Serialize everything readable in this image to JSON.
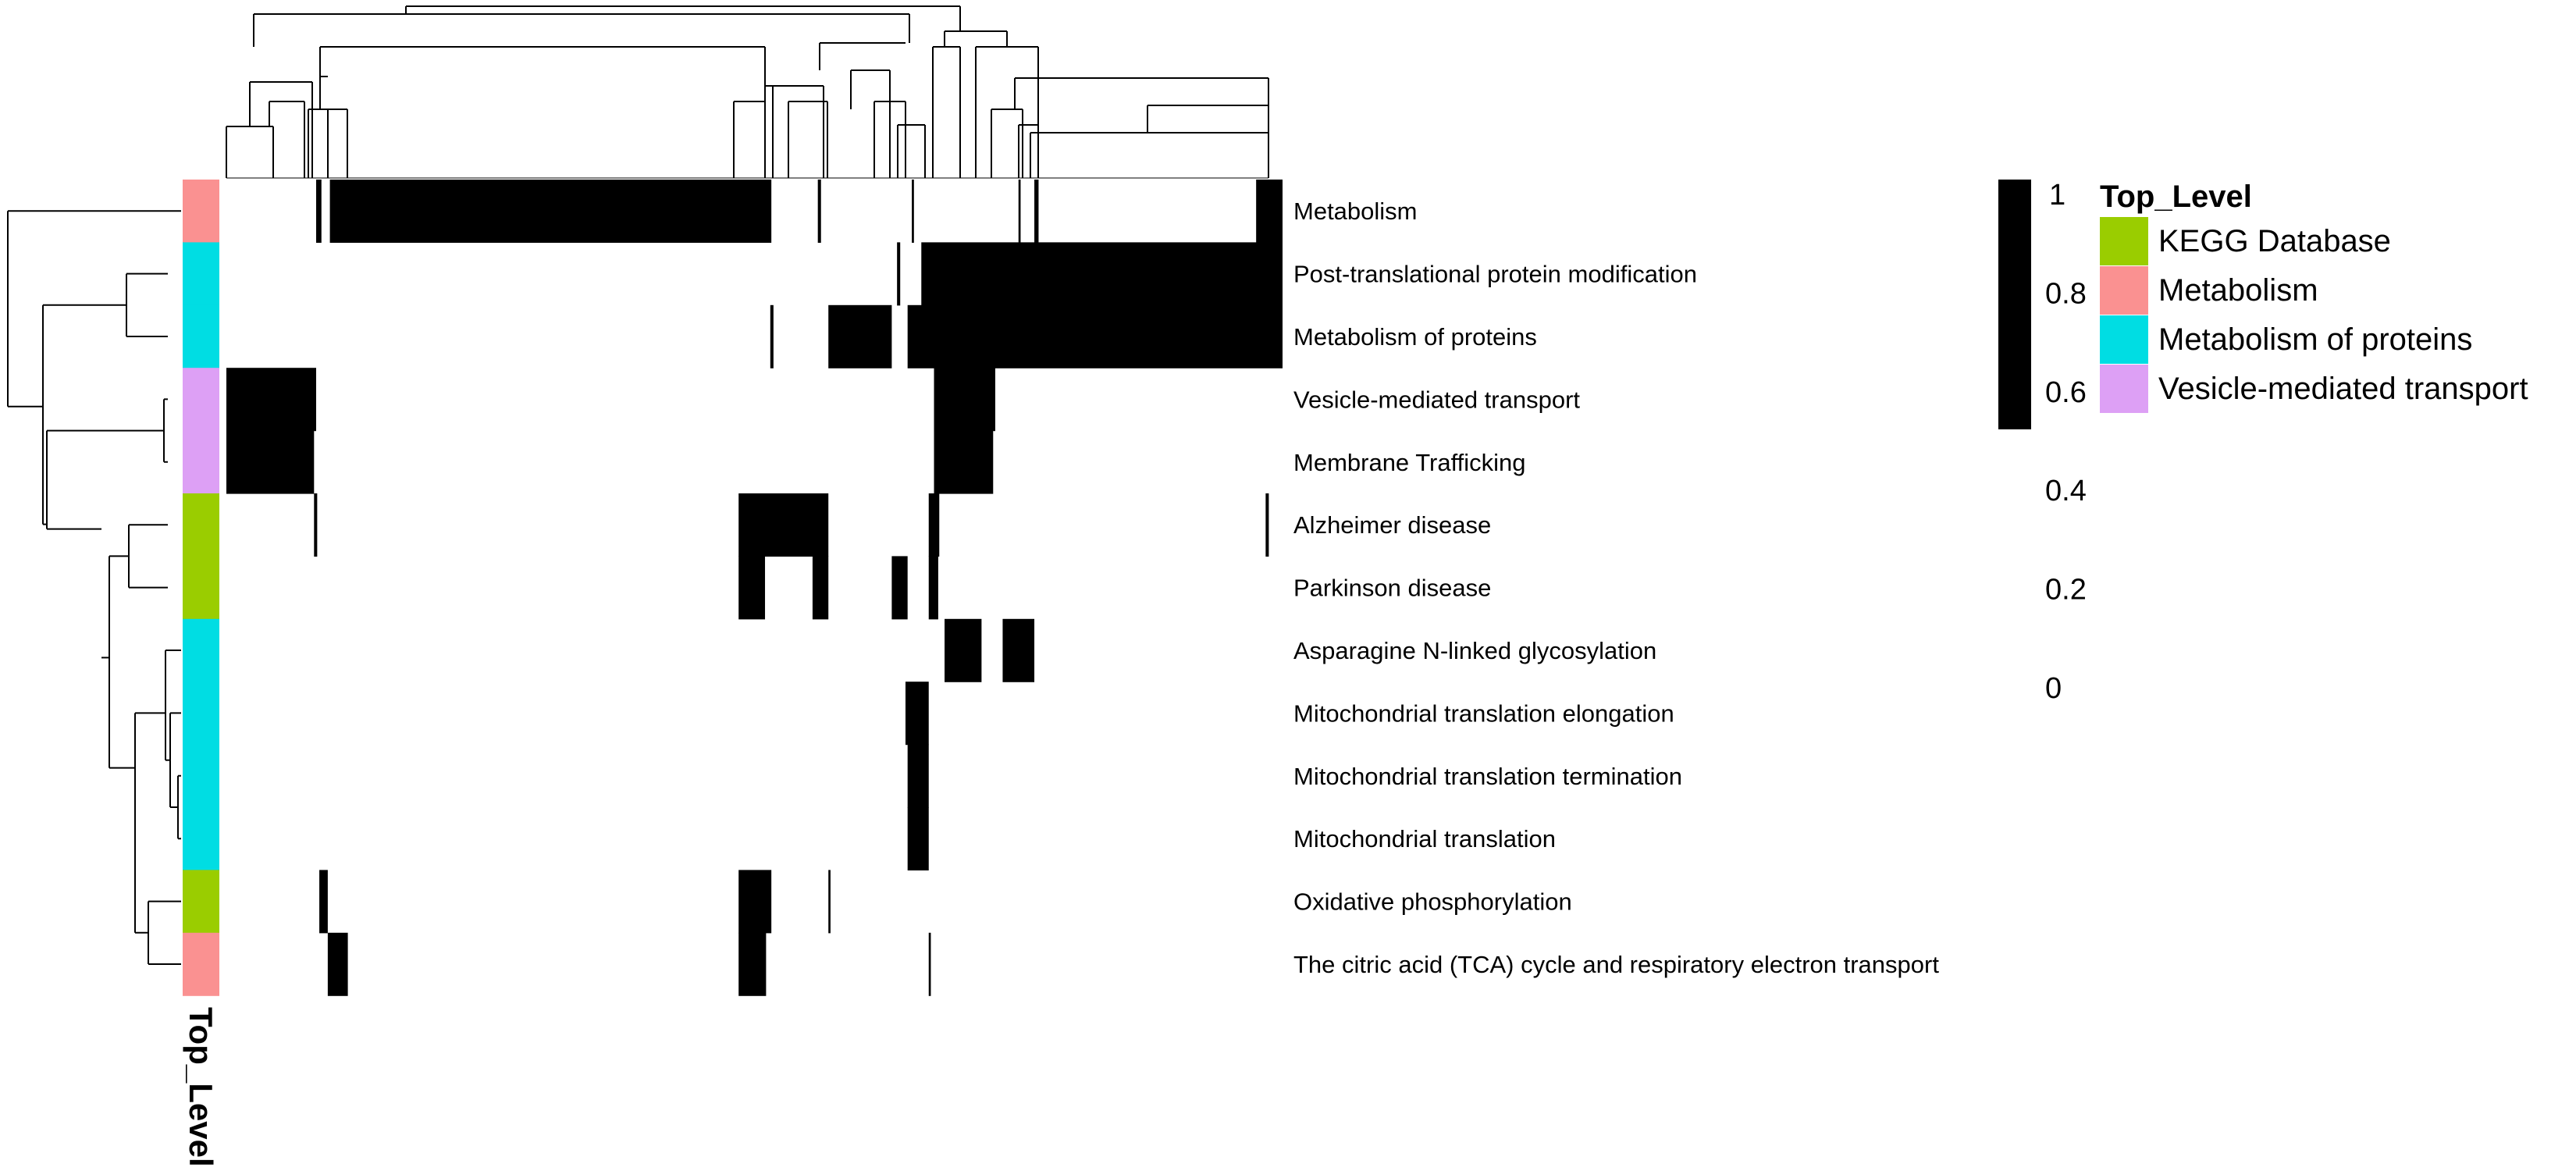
{
  "chart_data": {
    "type": "heatmap",
    "title": "",
    "xlabel": "",
    "ylabel": "",
    "rows": [
      {
        "label": "Metabolism",
        "top_level": "Metabolism"
      },
      {
        "label": "Post-translational protein modification",
        "top_level": "Metabolism of proteins"
      },
      {
        "label": "Metabolism of proteins",
        "top_level": "Metabolism of proteins"
      },
      {
        "label": "Vesicle-mediated transport",
        "top_level": "Vesicle-mediated transport"
      },
      {
        "label": "Membrane Trafficking",
        "top_level": "Vesicle-mediated transport"
      },
      {
        "label": "Alzheimer disease",
        "top_level": "KEGG Database"
      },
      {
        "label": "Parkinson disease",
        "top_level": "KEGG Database"
      },
      {
        "label": "Asparagine N-linked glycosylation",
        "top_level": "Metabolism of proteins"
      },
      {
        "label": "Mitochondrial translation elongation",
        "top_level": "Metabolism of proteins"
      },
      {
        "label": "Mitochondrial translation termination",
        "top_level": "Metabolism of proteins"
      },
      {
        "label": "Mitochondrial translation",
        "top_level": "Metabolism of proteins"
      },
      {
        "label": "Oxidative phosphorylation",
        "top_level": "KEGG Database"
      },
      {
        "label": "The citric acid (TCA) cycle and respiratory electron transport",
        "top_level": "Metabolism"
      }
    ],
    "column_axis": {
      "min": 0,
      "max": 100,
      "unit": "column position (0-100 across heatmap width)"
    },
    "cells_value_1": [
      [
        [
          8.5,
          9.0
        ],
        [
          9.8,
          51.6
        ],
        [
          56.0,
          56.3
        ],
        [
          64.9,
          65.1
        ],
        [
          75.0,
          75.2
        ],
        [
          76.5,
          76.9
        ],
        [
          97.5,
          100
        ]
      ],
      [
        [
          63.5,
          63.8
        ],
        [
          65.8,
          100
        ]
      ],
      [
        [
          51.5,
          51.8
        ],
        [
          57.0,
          63.0
        ],
        [
          64.5,
          100
        ]
      ],
      [
        [
          0,
          8.5
        ],
        [
          67.0,
          72.8
        ]
      ],
      [
        [
          0,
          8.3
        ],
        [
          67.0,
          72.6
        ]
      ],
      [
        [
          8.3,
          8.6
        ],
        [
          48.5,
          57.0
        ],
        [
          66.5,
          67.5
        ],
        [
          98.4,
          98.7
        ]
      ],
      [
        [
          48.5,
          51.0
        ],
        [
          55.5,
          57.0
        ],
        [
          63.0,
          64.5
        ],
        [
          66.5,
          67.4
        ]
      ],
      [
        [
          68.0,
          71.5
        ],
        [
          73.5,
          76.5
        ]
      ],
      [
        [
          64.3,
          66.5
        ]
      ],
      [
        [
          64.5,
          66.5
        ]
      ],
      [
        [
          64.5,
          66.5
        ]
      ],
      [
        [
          8.8,
          9.6
        ],
        [
          48.5,
          51.6
        ],
        [
          57.0,
          57.2
        ]
      ],
      [
        [
          9.6,
          11.5
        ],
        [
          48.5,
          51.1
        ],
        [
          66.5,
          66.7
        ]
      ]
    ],
    "annotation": {
      "title": "Top_Level",
      "categories": [
        {
          "name": "KEGG Database",
          "color": "#9acd00"
        },
        {
          "name": "Metabolism",
          "color": "#fa9191"
        },
        {
          "name": "Metabolism of proteins",
          "color": "#00dde3"
        },
        {
          "name": "Vesicle-mediated transport",
          "color": "#dda0f5"
        }
      ]
    },
    "color_scale": {
      "low_color": "#ffffff",
      "high_color": "#000000",
      "range": [
        0,
        1
      ],
      "ticks": [
        "1",
        "0.8",
        "0.6",
        "0.4",
        "0.2",
        "0"
      ]
    },
    "row_dendrogram_present": true,
    "column_dendrogram_present": true
  }
}
